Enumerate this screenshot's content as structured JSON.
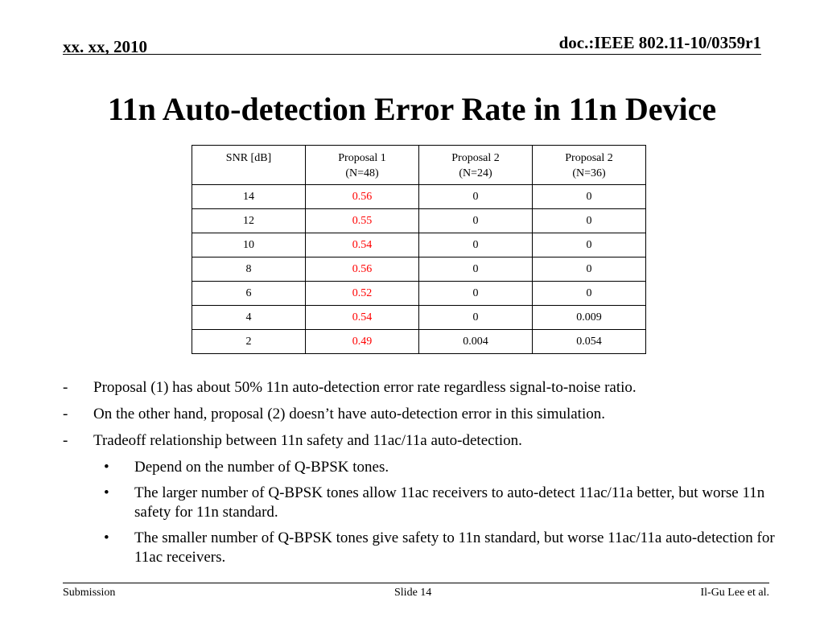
{
  "header": {
    "date": "xx. xx, 2010",
    "doc_id": "doc.:IEEE 802.11-10/0359r1"
  },
  "title": "11n Auto-detection Error Rate in 11n Device",
  "table": {
    "headers": [
      [
        "SNR [dB]"
      ],
      [
        "Proposal 1",
        "(N=48)"
      ],
      [
        "Proposal 2",
        "(N=24)"
      ],
      [
        "Proposal 2",
        "(N=36)"
      ]
    ],
    "rows": [
      [
        "14",
        "0.56",
        "0",
        "0"
      ],
      [
        "12",
        "0.55",
        "0",
        "0"
      ],
      [
        "10",
        "0.54",
        "0",
        "0"
      ],
      [
        "8",
        "0.56",
        "0",
        "0"
      ],
      [
        "6",
        "0.52",
        "0",
        "0"
      ],
      [
        "4",
        "0.54",
        "0",
        "0.009"
      ],
      [
        "2",
        "0.49",
        "0.004",
        "0.054"
      ]
    ],
    "highlight_color": "#ff0000"
  },
  "bullets": [
    {
      "level": 1,
      "marker": "-",
      "text": "Proposal (1) has about 50% 11n auto-detection error rate regardless signal-to-noise ratio."
    },
    {
      "level": 1,
      "marker": "-",
      "text": "On the other hand, proposal (2) doesn’t have auto-detection error in this simulation."
    },
    {
      "level": 1,
      "marker": "-",
      "text": "Tradeoff relationship between 11n safety and 11ac/11a auto-detection."
    },
    {
      "level": 2,
      "marker": "•",
      "text": "Depend on the number of Q-BPSK tones."
    },
    {
      "level": 2,
      "marker": "•",
      "text": "The larger number of Q-BPSK tones allow 11ac receivers to auto-detect 11ac/11a better, but worse 11n safety for 11n standard."
    },
    {
      "level": 2,
      "marker": "•",
      "text": "The smaller number of Q-BPSK tones give safety to 11n standard, but worse 11ac/11a auto-detection for 11ac receivers."
    }
  ],
  "footer": {
    "left": "Submission",
    "center": "Slide 14",
    "right": "Il-Gu Lee et al."
  }
}
